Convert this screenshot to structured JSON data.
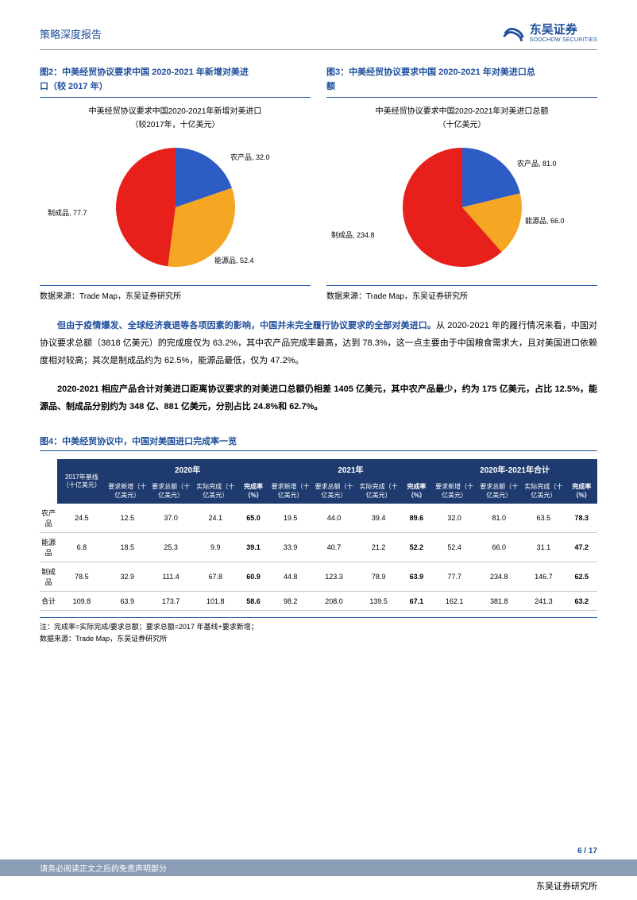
{
  "header": {
    "title": "策略深度报告",
    "logo_cn": "东吴证券",
    "logo_en": "SOOCHOW SECURITIES"
  },
  "figure2": {
    "title_a": "图2：中美经贸协议要求中国 2020-2021 年新增对美进",
    "title_b": "口（较 2017 年）",
    "chart_title": "中美经贸协议要求中国2020-2021年新增对美进口",
    "chart_sub": "（较2017年，十亿美元）",
    "slices": [
      {
        "name": "农产品",
        "value": 32.0,
        "color": "#2e5cc5",
        "label": "农产品, 32.0"
      },
      {
        "name": "能源品",
        "value": 52.4,
        "color": "#f5a623",
        "label": "能源品, 52.4"
      },
      {
        "name": "制成品",
        "value": 77.7,
        "color": "#e8201b",
        "label": "制成品, 77.7"
      }
    ],
    "source": "数据来源：Trade Map，东吴证券研究所"
  },
  "figure3": {
    "title_a": "图3：中美经贸协议要求中国 2020-2021 年对美进口总",
    "title_b": "额",
    "chart_title": "中美经贸协议要求中国2020-2021年对美进口总额",
    "chart_sub": "（十亿美元）",
    "slices": [
      {
        "name": "农产品",
        "value": 81.0,
        "color": "#2e5cc5",
        "label": "农产品, 81.0"
      },
      {
        "name": "能源品",
        "value": 66.0,
        "color": "#f5a623",
        "label": "能源品, 66.0"
      },
      {
        "name": "制成品",
        "value": 234.8,
        "color": "#e8201b",
        "label": "制成品, 234.8"
      }
    ],
    "source": "数据来源：Trade Map，东吴证券研究所"
  },
  "para1": {
    "lead": "但由于疫情爆发、全球经济衰退等各项因素的影响，中国并未完全履行协议要求的全部对美进口。",
    "rest": "从 2020-2021 年的履行情况来看，中国对协议要求总额（3818 亿美元）的完成度仅为 63.2%，其中农产品完成率最高，达到 78.3%，这一点主要由于中国粮食需求大，且对美国进口依赖度相对较高；其次是制成品约为 62.5%，能源品最低，仅为 47.2%。"
  },
  "para2": "2020-2021 相应产品合计对美进口距离协议要求的对美进口总额仍相差 1405 亿美元，其中农产品最少，约为 175 亿美元，占比 12.5%，能源品、制成品分别约为 348 亿、881 亿美元，分别占比 24.8%和 62.7%。",
  "figure4": {
    "title": "图4：中美经贸协议中，中国对美国进口完成率一览",
    "yrs": [
      "2020年",
      "2021年",
      "2020年-2021年合计"
    ],
    "base_col": "2017年基线（十亿美元）",
    "subcols": [
      "要求新增（十亿美元）",
      "要求总额（十亿美元）",
      "实际完成（十亿美元）",
      "完成率（%）"
    ],
    "rows": [
      {
        "name": "农产品",
        "base": "24.5",
        "y20": [
          "12.5",
          "37.0",
          "24.1",
          "65.0"
        ],
        "y21": [
          "19.5",
          "44.0",
          "39.4",
          "89.6"
        ],
        "tot": [
          "32.0",
          "81.0",
          "63.5",
          "78.3"
        ]
      },
      {
        "name": "能源品",
        "base": "6.8",
        "y20": [
          "18.5",
          "25.3",
          "9.9",
          "39.1"
        ],
        "y21": [
          "33.9",
          "40.7",
          "21.2",
          "52.2"
        ],
        "tot": [
          "52.4",
          "66.0",
          "31.1",
          "47.2"
        ]
      },
      {
        "name": "制成品",
        "base": "78.5",
        "y20": [
          "32.9",
          "111.4",
          "67.8",
          "60.9"
        ],
        "y21": [
          "44.8",
          "123.3",
          "78.9",
          "63.9"
        ],
        "tot": [
          "77.7",
          "234.8",
          "146.7",
          "62.5"
        ]
      },
      {
        "name": "合计",
        "base": "109.8",
        "y20": [
          "63.9",
          "173.7",
          "101.8",
          "58.6"
        ],
        "y21": [
          "98.2",
          "208.0",
          "139.5",
          "67.1"
        ],
        "tot": [
          "162.1",
          "381.8",
          "241.3",
          "63.2"
        ]
      }
    ],
    "note": "注：完成率=实际完成/要求总额；要求总额=2017 年基线+要求新增；",
    "source": "数据来源：Trade Map，东吴证券研究所"
  },
  "page_num": "6 / 17",
  "footer_left": "请务必阅读正文之后的免责声明部分",
  "footer_right": "东吴证券研究所",
  "colors": {
    "primary": "#1e4e9c",
    "table_header": "#1e3a6e",
    "footer_bar": "#8a9db5"
  }
}
